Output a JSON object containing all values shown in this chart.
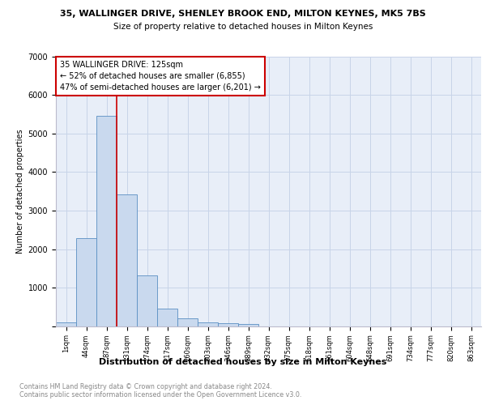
{
  "title": "35, WALLINGER DRIVE, SHENLEY BROOK END, MILTON KEYNES, MK5 7BS",
  "subtitle": "Size of property relative to detached houses in Milton Keynes",
  "xlabel": "Distribution of detached houses by size in Milton Keynes",
  "ylabel": "Number of detached properties",
  "bar_labels": [
    "1sqm",
    "44sqm",
    "87sqm",
    "131sqm",
    "174sqm",
    "217sqm",
    "260sqm",
    "303sqm",
    "346sqm",
    "389sqm",
    "432sqm",
    "475sqm",
    "518sqm",
    "561sqm",
    "604sqm",
    "648sqm",
    "691sqm",
    "734sqm",
    "777sqm",
    "820sqm",
    "863sqm"
  ],
  "bar_heights": [
    100,
    2280,
    5460,
    3430,
    1310,
    460,
    200,
    100,
    70,
    50,
    0,
    0,
    0,
    0,
    0,
    0,
    0,
    0,
    0,
    0,
    0
  ],
  "bar_color": "#c9d9ee",
  "bar_edge_color": "#5a8fc3",
  "grid_color": "#c8d4e8",
  "background_color": "#e8eef8",
  "vline_color": "#cc0000",
  "vline_x": 2.5,
  "annotation_line1": "35 WALLINGER DRIVE: 125sqm",
  "annotation_line2": "← 52% of detached houses are smaller (6,855)",
  "annotation_line3": "47% of semi-detached houses are larger (6,201) →",
  "annotation_box_color": "#ffffff",
  "annotation_box_edge_color": "#cc0000",
  "footer_text": "Contains HM Land Registry data © Crown copyright and database right 2024.\nContains public sector information licensed under the Open Government Licence v3.0.",
  "ylim": [
    0,
    7000
  ],
  "yticks": [
    0,
    1000,
    2000,
    3000,
    4000,
    5000,
    6000,
    7000
  ]
}
